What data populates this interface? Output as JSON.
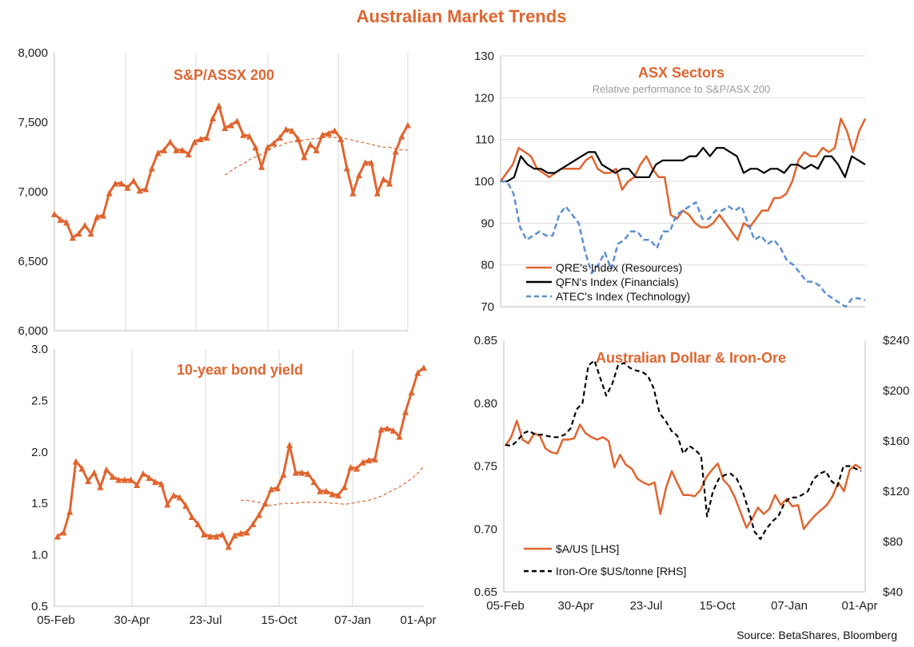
{
  "title": "Australian Market Trends",
  "source": "Source: BetaShares, Bloomberg",
  "colors": {
    "orange": "#E0652F",
    "black": "#000000",
    "blue": "#5B8FD4",
    "grid": "#d9d9d9",
    "axis": "#bfbfbf"
  },
  "chart_data": [
    {
      "id": "asx200",
      "type": "line",
      "title": "S&P/ASSX 200",
      "x_labels": [
        "05-Feb",
        "30-Apr",
        "23-Jul",
        "15-Oct",
        "07-Jan",
        "01-Apr"
      ],
      "ylim": [
        6000,
        8000
      ],
      "y_ticks": [
        "6,000",
        "6,500",
        "7,000",
        "7,500",
        "8,000"
      ],
      "y_tick_values": [
        6000,
        6500,
        7000,
        7500,
        8000
      ],
      "series": [
        {
          "name": "S&P/ASX 200",
          "style": "orange-triangles",
          "values": [
            6840,
            6800,
            6780,
            6670,
            6700,
            6760,
            6700,
            6820,
            6830,
            6990,
            7060,
            7060,
            7030,
            7080,
            7010,
            7020,
            7170,
            7280,
            7300,
            7360,
            7300,
            7300,
            7270,
            7360,
            7380,
            7390,
            7530,
            7620,
            7460,
            7480,
            7510,
            7410,
            7400,
            7320,
            7180,
            7320,
            7350,
            7390,
            7450,
            7440,
            7380,
            7250,
            7340,
            7300,
            7410,
            7420,
            7440,
            7380,
            7170,
            6990,
            7120,
            7210,
            7210,
            6990,
            7090,
            7060,
            7290,
            7400,
            7480
          ]
        },
        {
          "name": "Moving average",
          "style": "orange-dash",
          "values": [
            null,
            null,
            null,
            null,
            null,
            null,
            null,
            null,
            null,
            null,
            null,
            null,
            null,
            null,
            null,
            null,
            null,
            null,
            null,
            null,
            null,
            null,
            null,
            null,
            null,
            null,
            null,
            null,
            7120,
            7150,
            7180,
            7200,
            7230,
            7250,
            7270,
            7300,
            7320,
            7330,
            7350,
            7360,
            7370,
            7370,
            7380,
            7380,
            7390,
            7390,
            7390,
            7390,
            7380,
            7370,
            7360,
            7350,
            7340,
            7330,
            7320,
            7320,
            7310,
            7300,
            7300
          ]
        }
      ]
    },
    {
      "id": "bond10y",
      "type": "line",
      "title": "10-year bond yield",
      "x_labels": [
        "05-Feb",
        "30-Apr",
        "23-Jul",
        "15-Oct",
        "07-Jan",
        "01-Apr"
      ],
      "ylim": [
        0.5,
        3.0
      ],
      "y_ticks": [
        "0.5",
        "1.0",
        "1.5",
        "2.0",
        "2.5",
        "3.0"
      ],
      "y_tick_values": [
        0.5,
        1.0,
        1.5,
        2.0,
        2.5,
        3.0
      ],
      "series": [
        {
          "name": "10-year bond yield",
          "style": "orange-triangles",
          "values": [
            1.18,
            1.22,
            1.42,
            1.91,
            1.84,
            1.72,
            1.8,
            1.66,
            1.83,
            1.76,
            1.73,
            1.73,
            1.73,
            1.68,
            1.79,
            1.75,
            1.71,
            1.69,
            1.49,
            1.58,
            1.56,
            1.48,
            1.37,
            1.3,
            1.2,
            1.18,
            1.18,
            1.2,
            1.08,
            1.19,
            1.21,
            1.22,
            1.3,
            1.39,
            1.5,
            1.64,
            1.65,
            1.78,
            2.07,
            1.8,
            1.8,
            1.79,
            1.71,
            1.62,
            1.62,
            1.59,
            1.58,
            1.66,
            1.85,
            1.84,
            1.9,
            1.92,
            1.93,
            2.22,
            2.23,
            2.21,
            2.15,
            2.39,
            2.58,
            2.77,
            2.82
          ]
        },
        {
          "name": "Moving average",
          "style": "orange-dash",
          "values": [
            null,
            null,
            null,
            null,
            null,
            null,
            null,
            null,
            null,
            null,
            null,
            null,
            null,
            null,
            null,
            null,
            null,
            null,
            null,
            null,
            null,
            null,
            null,
            null,
            null,
            null,
            null,
            null,
            null,
            null,
            1.53,
            1.53,
            1.52,
            1.51,
            1.49,
            1.48,
            1.49,
            1.5,
            1.5,
            1.5,
            1.51,
            1.51,
            1.51,
            1.51,
            1.51,
            1.5,
            1.5,
            1.49,
            1.5,
            1.51,
            1.52,
            1.53,
            1.55,
            1.57,
            1.6,
            1.63,
            1.66,
            1.7,
            1.74,
            1.79,
            1.86
          ]
        }
      ]
    },
    {
      "id": "sectors",
      "type": "line",
      "title": "ASX Sectors",
      "subtitle": "Relative performance to S&P/ASX 200",
      "ylim": [
        70,
        130
      ],
      "y_ticks": [
        "70",
        "80",
        "90",
        "100",
        "110",
        "120",
        "130"
      ],
      "y_tick_values": [
        70,
        80,
        90,
        100,
        110,
        120,
        130
      ],
      "series": [
        {
          "name": "QRE's Index (Resources)",
          "style": "orange-solid",
          "values": [
            100,
            102,
            104,
            108,
            107,
            106,
            103,
            102,
            101,
            102,
            103,
            103,
            103,
            103,
            105,
            106,
            103,
            102,
            102,
            103,
            98,
            100,
            101,
            104,
            106,
            103,
            101,
            101,
            92,
            91,
            93,
            92,
            90,
            89,
            89,
            90,
            92,
            90,
            88,
            86,
            90,
            89,
            91,
            93,
            93,
            96,
            96,
            97,
            100,
            105,
            107,
            106,
            106,
            108,
            107,
            108,
            115,
            112,
            107,
            112,
            115
          ]
        },
        {
          "name": "QFN's Index (Financials)",
          "style": "black-solid",
          "values": [
            100,
            100,
            101,
            106,
            104,
            103,
            103,
            102,
            102,
            103,
            104,
            105,
            106,
            107,
            107,
            104,
            103,
            102,
            103,
            103,
            101,
            101,
            101,
            104,
            105,
            105,
            105,
            105,
            106,
            106,
            108,
            106,
            108,
            108,
            107,
            106,
            102,
            103,
            103,
            102,
            103,
            103,
            102,
            104,
            104,
            103,
            104,
            103,
            106,
            106,
            104,
            101,
            106,
            105,
            104
          ]
        },
        {
          "name": "ATEC's Index (Technology)",
          "style": "blue-dash",
          "values": [
            100,
            100,
            97,
            89,
            86,
            87,
            88,
            87,
            87,
            92,
            94,
            92,
            90,
            83,
            78,
            80,
            83,
            79,
            85,
            86,
            88,
            88,
            86,
            86,
            84,
            88,
            88,
            92,
            93,
            94,
            95,
            91,
            91,
            93,
            93,
            94,
            93,
            94,
            90,
            86,
            87,
            85,
            86,
            84,
            81,
            80,
            78,
            76,
            76,
            75,
            73,
            72,
            71,
            70,
            72,
            72,
            71.5
          ]
        }
      ]
    },
    {
      "id": "aud_iron",
      "type": "line",
      "title": "Australian Dollar & Iron-Ore",
      "x_labels": [
        "05-Feb",
        "30-Apr",
        "23-Jul",
        "15-Oct",
        "07-Jan",
        "01-Apr"
      ],
      "ylim_left": [
        0.65,
        0.85
      ],
      "y_ticks_left": [
        "0.65",
        "0.70",
        "0.75",
        "0.80",
        "0.85"
      ],
      "y_tick_values_left": [
        0.65,
        0.7,
        0.75,
        0.8,
        0.85
      ],
      "ylim_right": [
        40,
        240
      ],
      "y_ticks_right": [
        "$40",
        "$80",
        "$120",
        "$160",
        "$200",
        "$240"
      ],
      "y_tick_values_right": [
        40,
        80,
        120,
        160,
        200,
        240
      ],
      "series": [
        {
          "name": "$A/US [LHS]",
          "style": "orange-solid",
          "axis": "left",
          "values": [
            0.766,
            0.773,
            0.786,
            0.771,
            0.768,
            0.776,
            0.774,
            0.764,
            0.761,
            0.76,
            0.771,
            0.771,
            0.772,
            0.783,
            0.776,
            0.773,
            0.771,
            0.773,
            0.77,
            0.749,
            0.759,
            0.751,
            0.748,
            0.74,
            0.737,
            0.735,
            0.737,
            0.712,
            0.733,
            0.746,
            0.736,
            0.727,
            0.727,
            0.726,
            0.731,
            0.741,
            0.747,
            0.752,
            0.739,
            0.734,
            0.725,
            0.713,
            0.701,
            0.708,
            0.717,
            0.712,
            0.716,
            0.727,
            0.719,
            0.724,
            0.718,
            0.719,
            0.7,
            0.706,
            0.711,
            0.715,
            0.719,
            0.726,
            0.737,
            0.73,
            0.747,
            0.751,
            0.748
          ]
        },
        {
          "name": "Iron-Ore $US/tonne [RHS]",
          "style": "black-dash",
          "axis": "right",
          "values": [
            157,
            156,
            160,
            166,
            168,
            165,
            165,
            164,
            163,
            163,
            165,
            170,
            185,
            190,
            220,
            224,
            210,
            196,
            205,
            220,
            222,
            218,
            216,
            215,
            212,
            202,
            182,
            176,
            168,
            164,
            150,
            156,
            153,
            148,
            100,
            120,
            130,
            133,
            134,
            130,
            120,
            105,
            88,
            82,
            90,
            96,
            100,
            110,
            115,
            115,
            117,
            120,
            130,
            134,
            136,
            128,
            124,
            140,
            140,
            138,
            136
          ]
        }
      ]
    }
  ]
}
